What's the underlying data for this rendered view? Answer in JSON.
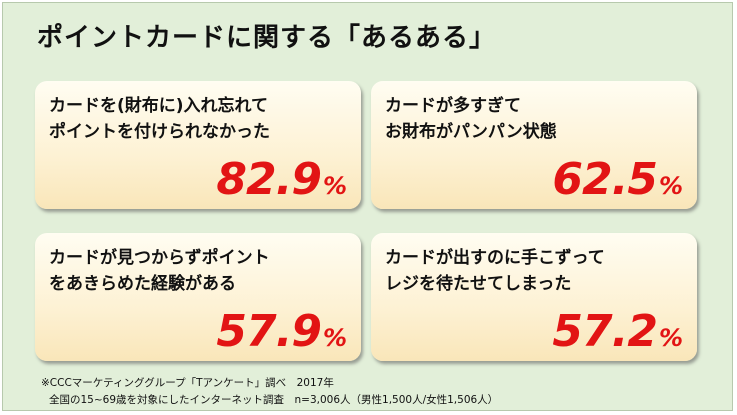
{
  "title": "ポイントカードに関する「あるある」",
  "cards": [
    {
      "line1": "カードを(財布に)入れ忘れて",
      "line2": "ポイントを付けられなかった",
      "value": "82.9",
      "unit": "%"
    },
    {
      "line1": "カードが多すぎて",
      "line2": "お財布がパンパン状態",
      "value": "62.5",
      "unit": "%"
    },
    {
      "line1": "カードが見つからずポイント",
      "line2": "をあきらめた経験がある",
      "value": "57.9",
      "unit": "%"
    },
    {
      "line1": "カードが出すのに手こずって",
      "line2": "レジを待たせてしまった",
      "value": "57.2",
      "unit": "%"
    }
  ],
  "footnote": {
    "line1": "※CCCマーケティンググループ「Tアンケート」調べ　2017年",
    "line2": "全国の15~69歳を対象にしたインターネット調査　n=3,006人（男性1,500人/女性1,506人）"
  },
  "colors": {
    "background": "#e2efd9",
    "card": "#fdf1d3",
    "percent": "#e21414"
  }
}
